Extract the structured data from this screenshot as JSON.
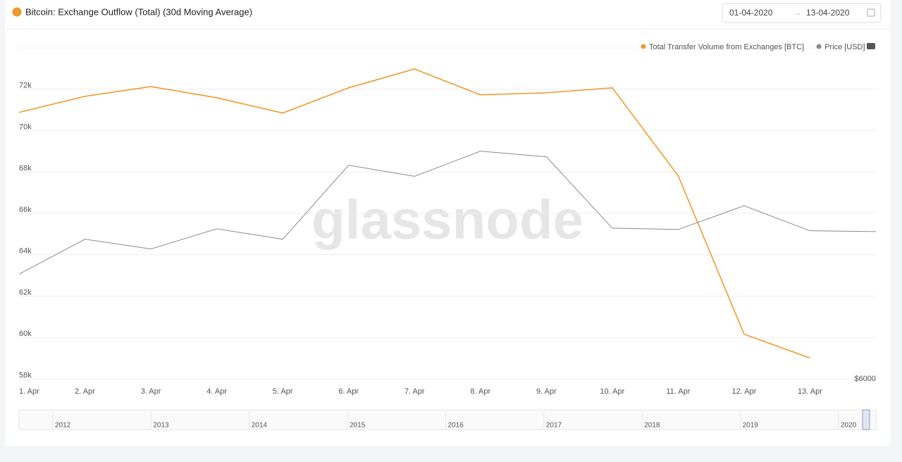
{
  "header": {
    "title": "Bitcoin: Exchange Outflow (Total) (30d Moving Average)",
    "date_from": "01-04-2020",
    "date_to": "13-04-2020"
  },
  "watermark": "glassnode",
  "navigator": {
    "labels": [
      "2012",
      "2013",
      "2014",
      "2015",
      "2016",
      "2017",
      "2018",
      "2019",
      "2020"
    ]
  },
  "chart_data": {
    "type": "line",
    "categories": [
      "1. Apr",
      "2. Apr",
      "3. Apr",
      "4. Apr",
      "5. Apr",
      "6. Apr",
      "7. Apr",
      "8. Apr",
      "9. Apr",
      "10. Apr",
      "11. Apr",
      "12. Apr",
      "13. Apr",
      null
    ],
    "series": [
      {
        "name": "Total Transfer Volume from Exchanges [BTC]",
        "color": "#f09a2e",
        "values": [
          70880,
          71660,
          72130,
          71590,
          70850,
          72070,
          72980,
          71730,
          71830,
          72070,
          67820,
          60160,
          59010,
          null
        ]
      },
      {
        "name": "Price [USD]",
        "color": "#8a8a8a",
        "axis": "y2",
        "values": [
          6633,
          6844,
          6785,
          6907,
          6844,
          7291,
          7224,
          7376,
          7342,
          6911,
          6903,
          7046,
          6895,
          6890
        ]
      }
    ],
    "ylim": [
      58000,
      74000
    ],
    "yticks": [
      {
        "value": 58000,
        "label": "58k"
      },
      {
        "value": 60000,
        "label": "60k"
      },
      {
        "value": 62000,
        "label": "62k"
      },
      {
        "value": 64000,
        "label": "64k"
      },
      {
        "value": 66000,
        "label": "66k"
      },
      {
        "value": 68000,
        "label": "68k"
      },
      {
        "value": 70000,
        "label": "70k"
      },
      {
        "value": 72000,
        "label": "72k"
      }
    ],
    "y2lim": [
      6000,
      8000
    ],
    "y2ticks": [
      {
        "value": 6000,
        "label": "$6000"
      }
    ],
    "grid": true
  }
}
